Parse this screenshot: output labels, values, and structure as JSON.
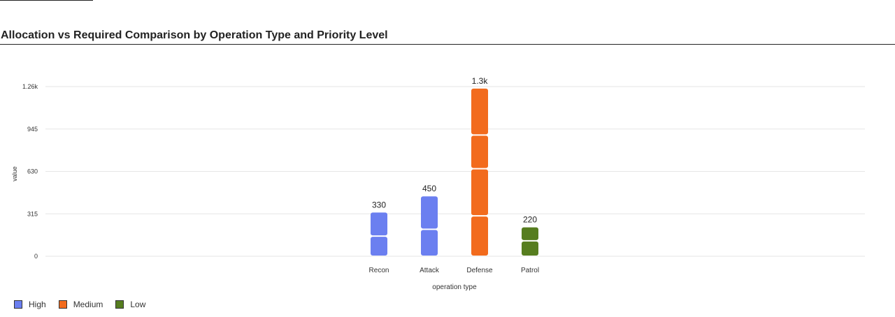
{
  "chart_data": {
    "type": "bar",
    "title": "Allocation vs Required Comparison by Operation Type and Priority Level",
    "xlabel": "operation type",
    "ylabel": "value",
    "categories": [
      "Recon",
      "Attack",
      "Defense",
      "Patrol"
    ],
    "ylim": [
      0,
      1260
    ],
    "yticks": [
      0,
      315,
      630,
      945,
      1260
    ],
    "ytick_labels": [
      "0",
      "315",
      "630",
      "945",
      "1.26k"
    ],
    "grid": true,
    "legend_position": "bottom-left",
    "colors": {
      "High": "#6b7ff0",
      "Medium": "#f26b1d",
      "Low": "#567d1f"
    },
    "legend": [
      "High",
      "Medium",
      "Low"
    ],
    "bars": [
      {
        "category": "Recon",
        "series": "High",
        "total_label": "330",
        "segments": [
          150,
          180
        ]
      },
      {
        "category": "Attack",
        "series": "High",
        "total_label": "450",
        "segments": [
          200,
          250
        ]
      },
      {
        "category": "Defense",
        "series": "Medium",
        "total_label": "1.3k",
        "segments": [
          300,
          350,
          250,
          350
        ]
      },
      {
        "category": "Patrol",
        "series": "Low",
        "total_label": "220",
        "segments": [
          115,
          105
        ]
      }
    ]
  }
}
